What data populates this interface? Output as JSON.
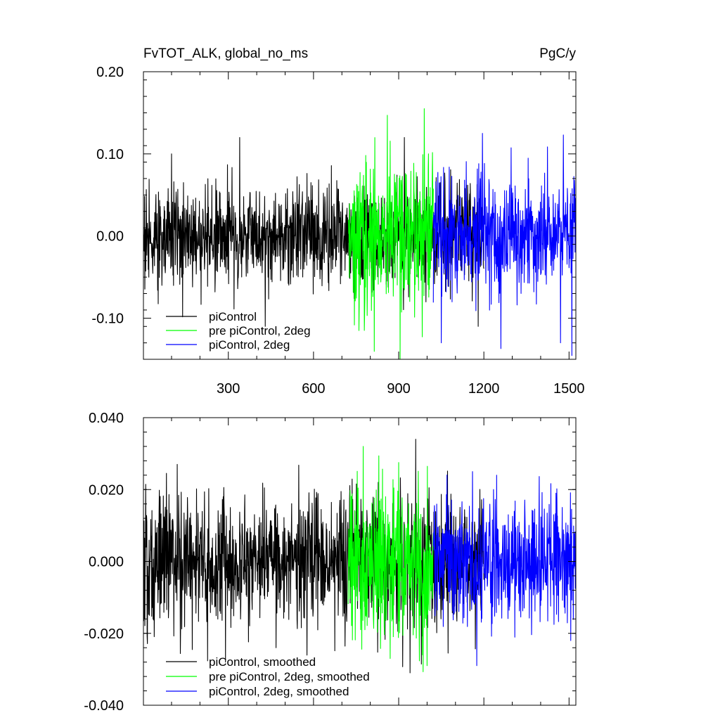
{
  "chart_data": [
    {
      "type": "line",
      "title_left": "FvTOT_ALK, global_no_ms",
      "title_right": "PgC/y",
      "xlabel": "",
      "ylabel": "",
      "xlim": [
        1,
        1524
      ],
      "ylim": [
        -0.15,
        0.2
      ],
      "x_ticks": [
        300,
        600,
        900,
        1200,
        1500
      ],
      "x_tick_labels": [
        "300",
        "600",
        "900",
        "1200",
        "1500"
      ],
      "y_ticks": [
        -0.1,
        0.0,
        0.1,
        0.2
      ],
      "y_tick_labels": [
        "-0.10",
        "0.00",
        "0.10",
        "0.20"
      ],
      "grid": false,
      "legend_position": "bottom-left",
      "series": [
        {
          "name": "piControl",
          "color": "#000000",
          "x_range": [
            1,
            1200
          ],
          "amplitude": 0.03,
          "peaks": [
            [
              100,
              0.1
            ],
            [
              340,
              0.12
            ],
            [
              430,
              -0.11
            ],
            [
              920,
              0.12
            ],
            [
              1180,
              -0.11
            ]
          ]
        },
        {
          "name": "pre piControl, 2deg",
          "color": "#00ff00",
          "x_range": [
            722,
            1022
          ],
          "amplitude": 0.045,
          "peaks": [
            [
              860,
              0.147
            ],
            [
              905,
              -0.15
            ],
            [
              990,
              0.155
            ],
            [
              760,
              -0.115
            ]
          ]
        },
        {
          "name": "piControl, 2deg",
          "color": "#0000ff",
          "x_range": [
            1022,
            1522
          ],
          "amplitude": 0.035,
          "peaks": [
            [
              1195,
              0.125
            ],
            [
              1260,
              -0.137
            ],
            [
              1480,
              0.123
            ],
            [
              1470,
              -0.13
            ],
            [
              1050,
              -0.13
            ]
          ]
        }
      ]
    },
    {
      "type": "line",
      "title_left": "",
      "title_right": "",
      "xlabel": "",
      "ylabel": "",
      "xlim": [
        1,
        1524
      ],
      "ylim": [
        -0.04,
        0.04
      ],
      "x_ticks": [
        300,
        600,
        900,
        1200,
        1500
      ],
      "x_tick_labels": [],
      "y_ticks": [
        -0.04,
        -0.02,
        0.0,
        0.02,
        0.04
      ],
      "y_tick_labels": [
        "-0.040",
        "-0.020",
        "0.000",
        "0.020",
        "0.040"
      ],
      "grid": false,
      "legend_position": "bottom-left",
      "series": [
        {
          "name": "piControl, smoothed",
          "color": "#000000",
          "x_range": [
            1,
            1200
          ],
          "amplitude": 0.009,
          "peaks": [
            [
              120,
              0.027
            ],
            [
              960,
              0.034
            ],
            [
              290,
              -0.028
            ],
            [
              940,
              -0.031
            ]
          ]
        },
        {
          "name": "pre piControl, 2deg, smoothed",
          "color": "#00ff00",
          "x_range": [
            722,
            1022
          ],
          "amplitude": 0.011,
          "peaks": [
            [
              775,
              0.032
            ],
            [
              1000,
              -0.029
            ],
            [
              870,
              -0.027
            ]
          ]
        },
        {
          "name": "piControl, 2deg, smoothed",
          "color": "#0000ff",
          "x_range": [
            1022,
            1522
          ],
          "amplitude": 0.009,
          "peaks": [
            [
              1160,
              0.025
            ],
            [
              1245,
              0.024
            ],
            [
              1175,
              -0.029
            ]
          ]
        }
      ]
    }
  ]
}
